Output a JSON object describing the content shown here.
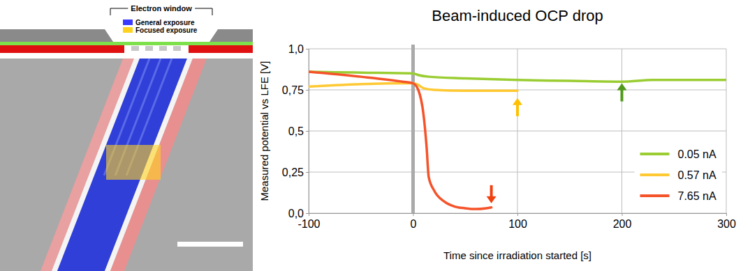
{
  "diagram": {
    "header": "Electron window",
    "legend": [
      {
        "label": "General exposure",
        "color": "#3a3aff"
      },
      {
        "label": "Focused exposure",
        "color": "#ffd21f"
      }
    ]
  },
  "chart_data": {
    "type": "line",
    "title": "Beam-induced OCP drop",
    "x_label": "Time since irradiation started [s]",
    "y_label": "Measured potential vs LFE [V]",
    "xlim": [
      -100,
      300
    ],
    "xticks": [
      -100,
      0,
      100,
      200,
      300
    ],
    "ylim": [
      0,
      1
    ],
    "yticks": [
      {
        "value": 0,
        "label": "0,0"
      },
      {
        "value": 0.25,
        "label": "0,25"
      },
      {
        "value": 0.5,
        "label": "0,5"
      },
      {
        "value": 0.75,
        "label": "0,75"
      },
      {
        "value": 1,
        "label": "1,0"
      }
    ],
    "grid": true,
    "legend": "lower right",
    "vline": 0,
    "series": [
      {
        "name": "0.05 nA",
        "color": "#9acd32",
        "x": [
          -100,
          -50,
          0,
          5,
          15,
          50,
          100,
          150,
          200,
          230,
          300
        ],
        "values": [
          0.86,
          0.855,
          0.85,
          0.84,
          0.83,
          0.82,
          0.81,
          0.805,
          0.8,
          0.81,
          0.81
        ]
      },
      {
        "name": "0.57 nA",
        "color": "#ffc933",
        "x": [
          -100,
          -50,
          0,
          5,
          10,
          20,
          50,
          100
        ],
        "values": [
          0.77,
          0.785,
          0.79,
          0.78,
          0.76,
          0.75,
          0.745,
          0.745
        ]
      },
      {
        "name": "7.65 nA",
        "color": "#f5532a",
        "x": [
          -100,
          -50,
          -10,
          0,
          5,
          10,
          13,
          15,
          20,
          30,
          40,
          50,
          60,
          70,
          75
        ],
        "values": [
          0.86,
          0.83,
          0.8,
          0.79,
          0.75,
          0.6,
          0.4,
          0.22,
          0.14,
          0.07,
          0.04,
          0.03,
          0.025,
          0.03,
          0.035
        ]
      }
    ],
    "arrows": [
      {
        "x": 75,
        "y": 0.06,
        "direction": "down",
        "color": "#f04010"
      },
      {
        "x": 100,
        "y": 0.7,
        "direction": "up",
        "color": "#ffc000"
      },
      {
        "x": 200,
        "y": 0.79,
        "direction": "up",
        "color": "#4f9a1a"
      }
    ]
  }
}
